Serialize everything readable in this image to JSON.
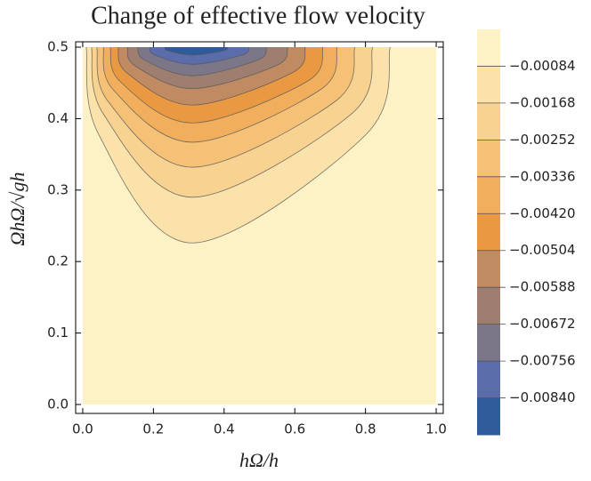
{
  "chart_data": {
    "type": "contour",
    "title": "Change of effective flow velocity",
    "x_label": "hΩ/h",
    "y_label": "ΩhΩ/√gh",
    "xlim": [
      -0.02,
      1.02
    ],
    "ylim": [
      -0.0125,
      0.5075
    ],
    "xticks": [
      {
        "value": 0,
        "label": "0.0"
      },
      0.2,
      0.4,
      0.6,
      0.8,
      {
        "value": 1,
        "label": "1.0"
      }
    ],
    "yticks": [
      {
        "value": 0,
        "label": "0.0"
      },
      0.1,
      0.2,
      0.3,
      0.4,
      0.5
    ],
    "clim": [
      -0.00924,
      0
    ],
    "colorbar_ticks": [
      {
        "value": -0.00084,
        "label": "−0.00084"
      },
      {
        "value": -0.00168,
        "label": "−0.00168"
      },
      {
        "value": -0.00252,
        "label": "−0.00252"
      },
      {
        "value": -0.00336,
        "label": "−0.00336"
      },
      {
        "value": -0.0042,
        "label": "−0.00420"
      },
      {
        "value": -0.00504,
        "label": "−0.00504"
      },
      {
        "value": -0.00588,
        "label": "−0.00588"
      },
      {
        "value": -0.00672,
        "label": "−0.00672"
      },
      {
        "value": -0.00756,
        "label": "−0.00756"
      },
      {
        "value": -0.0084,
        "label": "−0.00840"
      }
    ],
    "colors": [
      "#fdf1c6",
      "#fbe2aa",
      "#f8d291",
      "#f5c177",
      "#f1ae5c",
      "#e89942",
      "#c08a63",
      "#9e7f6f",
      "#7b7789",
      "#5a6ca9",
      "#2e5b99"
    ],
    "contours": [
      {
        "level": -0.00084,
        "x": [
          0.01,
          0.046,
          0.31,
          0.8,
          0.87
        ],
        "y": [
          0.5,
          0.377,
          0.226,
          0.377,
          0.5
        ]
      },
      {
        "level": -0.00168,
        "x": [
          0.025,
          0.059,
          0.31,
          0.759,
          0.82
        ],
        "y": [
          0.5,
          0.406,
          0.29,
          0.406,
          0.5
        ]
      },
      {
        "level": -0.00252,
        "x": [
          0.04,
          0.072,
          0.31,
          0.714,
          0.77
        ],
        "y": [
          0.5,
          0.424,
          0.332,
          0.424,
          0.5
        ]
      },
      {
        "level": -0.00336,
        "x": [
          0.058,
          0.087,
          0.31,
          0.671,
          0.72
        ],
        "y": [
          0.5,
          0.44,
          0.367,
          0.44,
          0.5
        ]
      },
      {
        "level": -0.0042,
        "x": [
          0.078,
          0.106,
          0.31,
          0.635,
          0.68
        ],
        "y": [
          0.5,
          0.452,
          0.394,
          0.452,
          0.5
        ]
      },
      {
        "level": -0.00504,
        "x": [
          0.1,
          0.125,
          0.31,
          0.592,
          0.63
        ],
        "y": [
          0.5,
          0.464,
          0.419,
          0.464,
          0.5
        ]
      },
      {
        "level": -0.00588,
        "x": [
          0.126,
          0.148,
          0.31,
          0.547,
          0.58
        ],
        "y": [
          0.5,
          0.474,
          0.442,
          0.474,
          0.5
        ]
      },
      {
        "level": -0.00672,
        "x": [
          0.156,
          0.175,
          0.31,
          0.495,
          0.52
        ],
        "y": [
          0.5,
          0.482,
          0.46,
          0.482,
          0.5
        ]
      },
      {
        "level": -0.00756,
        "x": [
          0.189,
          0.204,
          0.31,
          0.451,
          0.47
        ],
        "y": [
          0.5,
          0.489,
          0.476,
          0.489,
          0.5
        ]
      },
      {
        "level": -0.0084,
        "x": [
          0.232,
          0.241,
          0.31,
          0.398,
          0.41
        ],
        "y": [
          0.5,
          0.495,
          0.489,
          0.495,
          0.5
        ]
      }
    ]
  }
}
